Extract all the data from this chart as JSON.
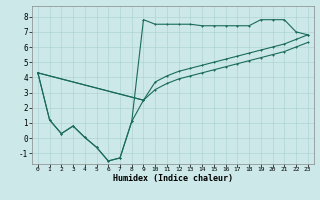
{
  "xlabel": "Humidex (Indice chaleur)",
  "bg_color": "#cce8e8",
  "line_color": "#1a6b5a",
  "xlim": [
    -0.5,
    23.5
  ],
  "ylim": [
    -1.7,
    8.7
  ],
  "xticks": [
    0,
    1,
    2,
    3,
    4,
    5,
    6,
    7,
    8,
    9,
    10,
    11,
    12,
    13,
    14,
    15,
    16,
    17,
    18,
    19,
    20,
    21,
    22,
    23
  ],
  "yticks": [
    -1,
    0,
    1,
    2,
    3,
    4,
    5,
    6,
    7,
    8
  ],
  "series_zigzag_x": [
    0,
    1,
    2,
    3,
    4,
    5,
    6,
    7,
    8,
    9
  ],
  "series_zigzag_y": [
    4.3,
    1.2,
    0.3,
    0.8,
    0.05,
    -0.6,
    -1.5,
    -1.3,
    1.1,
    2.5
  ],
  "series_top_x": [
    0,
    1,
    2,
    3,
    4,
    5,
    6,
    7,
    8,
    9,
    10,
    11,
    12,
    13,
    14,
    15,
    16,
    17,
    18,
    19,
    20,
    21,
    22,
    23
  ],
  "series_top_y": [
    4.3,
    1.2,
    0.3,
    0.8,
    0.05,
    -0.6,
    -1.5,
    -1.3,
    1.1,
    7.8,
    7.5,
    7.5,
    7.5,
    7.5,
    7.4,
    7.4,
    7.4,
    7.4,
    7.4,
    7.8,
    7.8,
    7.8,
    7.0,
    6.8
  ],
  "series_mid1_x": [
    0,
    9,
    10,
    11,
    12,
    13,
    14,
    15,
    16,
    17,
    18,
    19,
    20,
    21,
    22,
    23
  ],
  "series_mid1_y": [
    4.3,
    2.5,
    3.7,
    4.1,
    4.4,
    4.6,
    4.8,
    5.0,
    5.2,
    5.4,
    5.6,
    5.8,
    6.0,
    6.2,
    6.5,
    6.8
  ],
  "series_mid2_x": [
    0,
    9,
    10,
    11,
    12,
    13,
    14,
    15,
    16,
    17,
    18,
    19,
    20,
    21,
    22,
    23
  ],
  "series_mid2_y": [
    4.3,
    2.5,
    3.2,
    3.6,
    3.9,
    4.1,
    4.3,
    4.5,
    4.7,
    4.9,
    5.1,
    5.3,
    5.5,
    5.7,
    6.0,
    6.3
  ]
}
